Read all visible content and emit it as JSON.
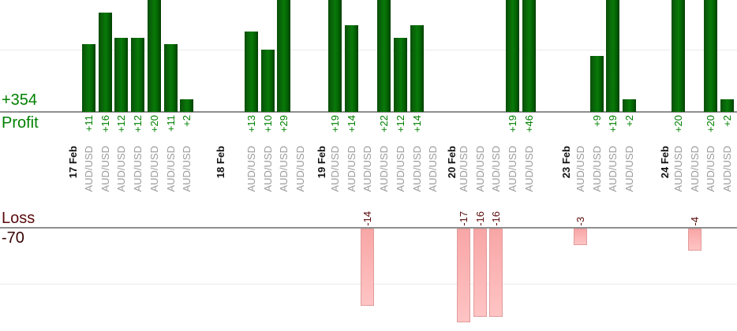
{
  "chart_data": {
    "type": "bar",
    "title": "",
    "description": "Per-trade profit (up, green) and loss (down, pink) bars grouped by day",
    "symbol": "AUD/USD",
    "profit_axis_label": "Profit",
    "profit_total_label": "+354",
    "profit_total": 354,
    "loss_axis_label": "Loss",
    "loss_total_label": "-70",
    "loss_total": -70,
    "grid": "on",
    "legend_position": "none",
    "groups": [
      {
        "date": "17 Feb",
        "values": [
          11,
          16,
          12,
          12,
          20,
          11,
          2
        ],
        "value_labels": [
          "+11",
          "+16",
          "+12",
          "+12",
          "+20",
          "+11",
          "+2"
        ]
      },
      {
        "date": "18 Feb",
        "values": [
          13,
          10,
          29,
          0
        ],
        "value_labels": [
          "+13",
          "+10",
          "+29",
          ""
        ]
      },
      {
        "date": "19 Feb",
        "values": [
          19,
          14,
          -14,
          22,
          12,
          14,
          0
        ],
        "value_labels": [
          "+19",
          "+14",
          "-14",
          "+22",
          "+12",
          "+14",
          ""
        ]
      },
      {
        "date": "20 Feb",
        "values": [
          -17,
          -16,
          -16,
          19,
          46
        ],
        "value_labels": [
          "-17",
          "-16",
          "-16",
          "+19",
          "+46"
        ]
      },
      {
        "date": "23 Feb",
        "values": [
          -3,
          9,
          19,
          2
        ],
        "value_labels": [
          "-3",
          "+9",
          "+19",
          "+2"
        ]
      },
      {
        "date": "24 Feb",
        "values": [
          20,
          -4,
          20,
          2
        ],
        "value_labels": [
          "+20",
          "-4",
          "+20",
          "+2"
        ]
      }
    ],
    "colors": {
      "profit_text": "#008000",
      "profit_bar_dark": "#0a4f0a",
      "profit_bar_light": "#087a08",
      "profit_bar_mid": "#046104",
      "profit_bar_edge": "#013e01",
      "loss_text": "#5a0b0b",
      "loss_total_text": "#380404",
      "loss_bar_fill_top": "#f8a6a6",
      "loss_bar_fill_bottom": "#ffc4c4",
      "loss_bar_border": "#e19b9b",
      "symbol_text": "#9b9b9b",
      "date_text": "#111111",
      "axis": "#8f8f8f",
      "grid": "#ebebeb"
    }
  }
}
